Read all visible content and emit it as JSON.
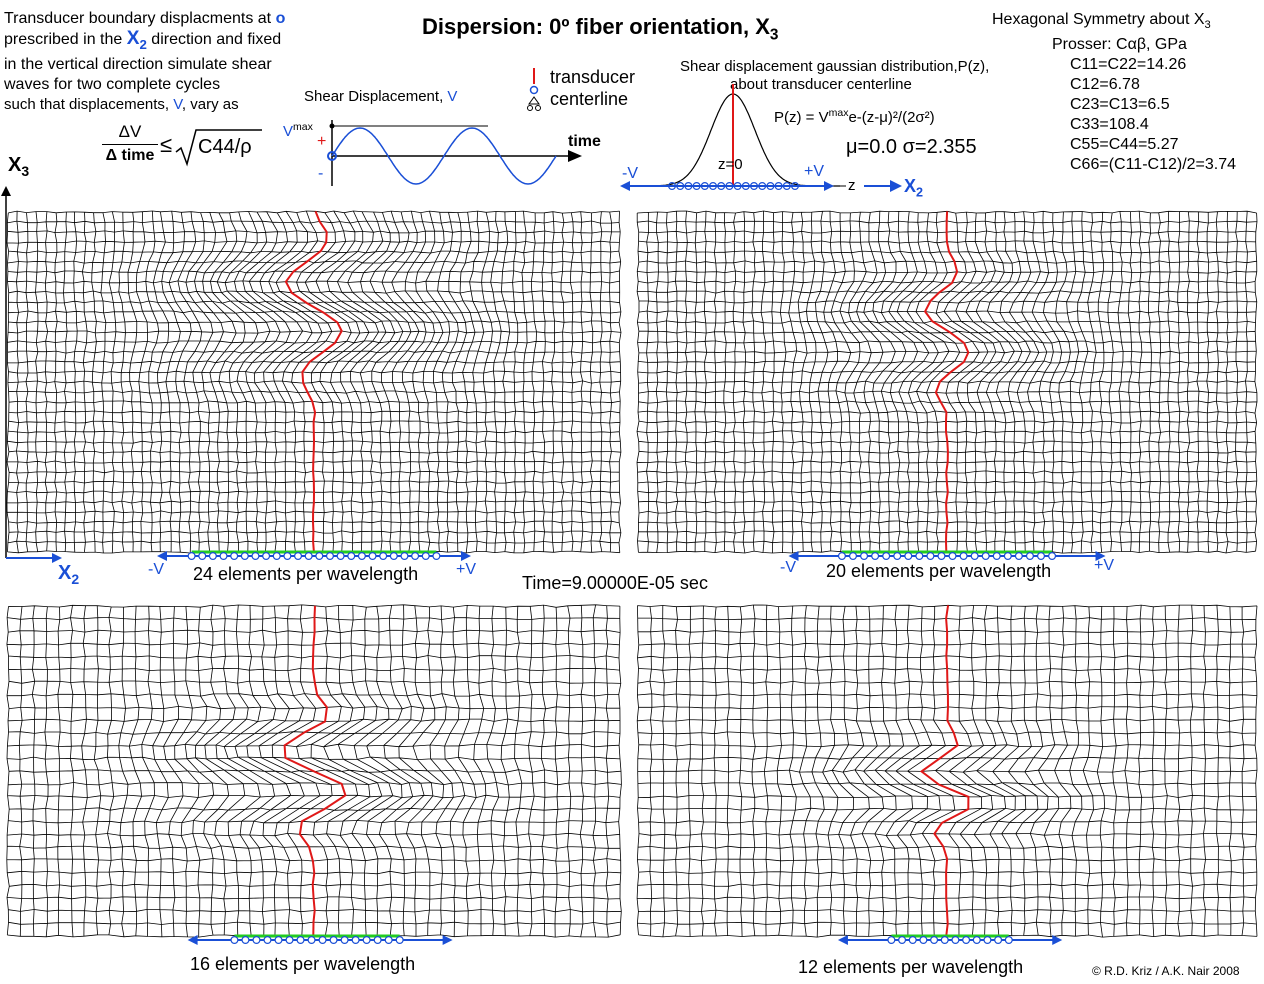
{
  "header": {
    "title": "Dispersion: 0º  fiber orientation, X",
    "title_sub": "3"
  },
  "intro": {
    "line1_a": "Transducer boundary displacments at",
    "line1_sym": "o",
    "line2_a": "prescribed in the",
    "line2_axis": "X",
    "line2_axis_sub": "2",
    "line2_b": "direction and fixed",
    "line3": "in the vertical direction simulate shear",
    "line4": "waves for two complete cycles",
    "line5_a": "such that displacements,",
    "line5_v": "V",
    "line5_b": ", vary as",
    "formula_num": "ΔV",
    "formula_den": "Δ time",
    "formula_le": "≤",
    "formula_rhs": "C44/ρ"
  },
  "shear_plot": {
    "title": "Shear Displacement,",
    "title_v": "V",
    "vmax": "V",
    "vmax_sup": "max",
    "plus": "+",
    "minus": "-",
    "time_label": "time"
  },
  "legend": {
    "transducer": "transducer",
    "centerline": "centerline"
  },
  "gaussian": {
    "title1": "Shear displacement gaussian distribution,P(z),",
    "title2": "about transducer centerline",
    "formula": "P(z) = V",
    "formula_sup": "max",
    "formula_tail": "e-(z-μ)²/(2σ²)",
    "params": "μ=0.0   σ=2.355",
    "z0": "z=0",
    "minus_v": "-V",
    "plus_v": "+V",
    "z_label": "z",
    "x2": "X",
    "x2_sub": "2"
  },
  "properties": {
    "heading": "Hexagonal Symmetry about X",
    "heading_sub": "3",
    "source": "Prosser: Cαβ, GPa",
    "c11": "C11=C22=14.26",
    "c12": "C12=6.78",
    "c23": "C23=C13=6.5",
    "c33": "C33=108.4",
    "c55": "C55=C44=5.27",
    "c66": "C66=(C11-C12)/2=3.74"
  },
  "axes": {
    "x3": "X",
    "x3_sub": "3",
    "x2": "X",
    "x2_sub": "2"
  },
  "panels": [
    {
      "caption": "24 elements per wavelength",
      "minus_v": "-V",
      "plus_v": "+V"
    },
    {
      "caption": "20 elements per wavelength",
      "minus_v": "-V",
      "plus_v": "+V"
    },
    {
      "caption": "16 elements per wavelength"
    },
    {
      "caption": "12 elements per wavelength"
    }
  ],
  "time_label": "Time=9.00000E-05 sec",
  "copyright": "© R.D. Kriz / A.K. Nair 2008",
  "colors": {
    "blue": "#1a4fd6",
    "red": "#e01818",
    "green": "#22cc22",
    "mesh": "#000000"
  }
}
